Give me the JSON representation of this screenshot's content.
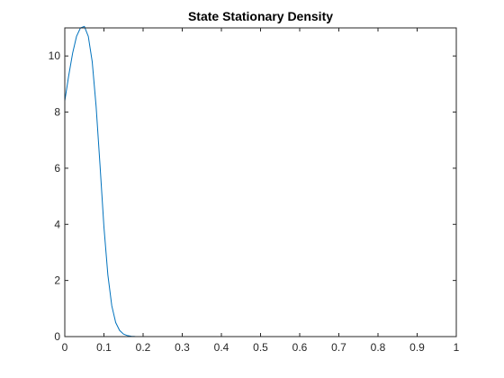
{
  "chart_data": {
    "type": "line",
    "title": "State Stationary Density",
    "xlabel": "",
    "ylabel": "",
    "xlim": [
      0,
      1
    ],
    "ylim": [
      0,
      11
    ],
    "xticks": [
      0,
      0.1,
      0.2,
      0.3,
      0.4,
      0.5,
      0.6,
      0.7,
      0.8,
      0.9,
      1
    ],
    "xtick_labels": [
      "0",
      "0.1",
      "0.2",
      "0.3",
      "0.4",
      "0.5",
      "0.6",
      "0.7",
      "0.8",
      "0.9",
      "1"
    ],
    "yticks": [
      0,
      2,
      4,
      6,
      8,
      10
    ],
    "ytick_labels": [
      "0",
      "2",
      "4",
      "6",
      "8",
      "10"
    ],
    "grid": false,
    "box": true,
    "series": [
      {
        "color": "#0072BD",
        "x": [
          0,
          0.01,
          0.02,
          0.03,
          0.04,
          0.05,
          0.06,
          0.07,
          0.08,
          0.09,
          0.1,
          0.11,
          0.12,
          0.13,
          0.14,
          0.15,
          0.16,
          0.17,
          0.18,
          0.19,
          0.2,
          0.22,
          0.25,
          0.3,
          0.4,
          0.5,
          0.6,
          0.7,
          0.8,
          0.9,
          1
        ],
        "y": [
          8.4,
          9.3,
          10.1,
          10.7,
          11.0,
          11.05,
          10.7,
          9.8,
          8.2,
          6.1,
          3.9,
          2.2,
          1.1,
          0.5,
          0.22,
          0.09,
          0.035,
          0.013,
          0.005,
          0.002,
          0.0008,
          0.0002,
          3e-05,
          0,
          0,
          0,
          0,
          0,
          0,
          0,
          0
        ]
      }
    ]
  }
}
